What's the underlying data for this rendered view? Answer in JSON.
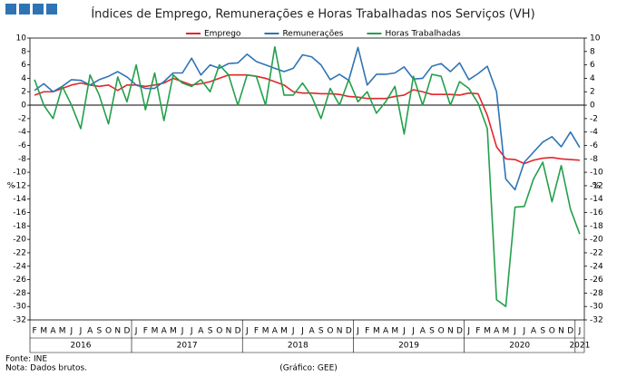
{
  "chart_data": {
    "type": "line",
    "title": "Índices de Emprego, Remunerações e Horas Trabalhadas nos Serviços (VH)",
    "ylabel": "%",
    "y2label": "%",
    "categories": [
      "F",
      "M",
      "A",
      "M",
      "J",
      "J",
      "A",
      "S",
      "O",
      "N",
      "D",
      "J",
      "F",
      "M",
      "A",
      "M",
      "J",
      "J",
      "A",
      "S",
      "O",
      "N",
      "D",
      "J",
      "F",
      "M",
      "A",
      "M",
      "J",
      "J",
      "A",
      "S",
      "O",
      "N",
      "D",
      "J",
      "F",
      "M",
      "A",
      "M",
      "J",
      "J",
      "A",
      "S",
      "O",
      "N",
      "D",
      "J",
      "F",
      "M",
      "A",
      "M",
      "J",
      "J",
      "A",
      "S",
      "O",
      "N",
      "D",
      "J"
    ],
    "years": [
      "2016",
      "2017",
      "2018",
      "2019",
      "2020",
      "2021"
    ],
    "series": [
      {
        "name": "Emprego",
        "color": "#e3262b",
        "values": [
          1.5,
          2,
          2,
          2.5,
          3,
          3.3,
          3,
          2.8,
          3,
          2.2,
          3,
          3,
          2.8,
          3,
          3.3,
          4,
          3.5,
          3,
          3.2,
          3.5,
          4,
          4.5,
          4.5,
          4.5,
          4.3,
          4,
          3.5,
          3,
          2,
          1.8,
          1.8,
          1.7,
          1.7,
          1.6,
          1.3,
          1.2,
          1,
          1,
          1,
          1.3,
          1.5,
          2.3,
          2,
          1.6,
          1.6,
          1.6,
          1.5,
          1.8,
          1.7,
          -1.5,
          -6.2,
          -8,
          -8.1,
          -8.7,
          -8.2,
          -7.9,
          -7.8,
          -8,
          -8.1,
          -8.2
        ]
      },
      {
        "name": "Remunerações",
        "color": "#2e74b5",
        "values": [
          2.2,
          3.2,
          2,
          2.8,
          3.8,
          3.7,
          3,
          3.8,
          4.3,
          5,
          4.2,
          3,
          2.5,
          2.5,
          3.5,
          4.8,
          4.8,
          7,
          4.5,
          6,
          5.5,
          6.2,
          6.3,
          7.6,
          6.5,
          6,
          5.5,
          5,
          5.5,
          7.5,
          7.2,
          6,
          3.8,
          4.6,
          3.7,
          8.6,
          3,
          4.6,
          4.6,
          4.8,
          5.7,
          3.9,
          4,
          5.8,
          6.2,
          5,
          6.3,
          3.8,
          4.7,
          5.8,
          2,
          -11,
          -12.6,
          -8.5,
          -7,
          -5.5,
          -4.7,
          -6.2,
          -4,
          -6.3
        ]
      },
      {
        "name": "Horas Trabalhadas",
        "color": "#22a04b",
        "values": [
          3.8,
          0,
          -2,
          2.8,
          0,
          -3.5,
          4.5,
          1.5,
          -2.8,
          4.2,
          0.5,
          6,
          -0.7,
          4.8,
          -2.3,
          4.5,
          3.3,
          2.8,
          3.8,
          2,
          6,
          4.5,
          0,
          4.5,
          4.3,
          0,
          8.7,
          1.5,
          1.5,
          3.3,
          1.3,
          -2,
          2.5,
          0,
          3.8,
          0.5,
          2,
          -1.2,
          0.5,
          2.8,
          -4.3,
          4.3,
          0,
          4.6,
          4.3,
          0,
          3.5,
          2.5,
          0.3,
          -3.5,
          -29,
          -30,
          -15.2,
          -15.1,
          -11,
          -8.5,
          -14.4,
          -9,
          -15.5,
          -19.2
        ]
      }
    ],
    "ylim": [
      -32,
      10
    ],
    "yticks": [
      -32,
      -30,
      -28,
      -26,
      -24,
      -22,
      -20,
      -18,
      -16,
      -14,
      -12,
      -10,
      -8,
      -6,
      -4,
      -2,
      0,
      2,
      4,
      6,
      8,
      10
    ],
    "y2lim": [
      -32,
      10
    ],
    "y2ticks": [
      -32,
      -30,
      -28,
      -26,
      -24,
      -22,
      -20,
      -18,
      -16,
      -14,
      -12,
      -10,
      -8,
      -6,
      -4,
      -2,
      0,
      2,
      4,
      6,
      8,
      10
    ],
    "legend": "top",
    "source": "Fonte: INE",
    "note": "Nota: Dados brutos.",
    "credit": "(Gráfico: GEE)"
  }
}
